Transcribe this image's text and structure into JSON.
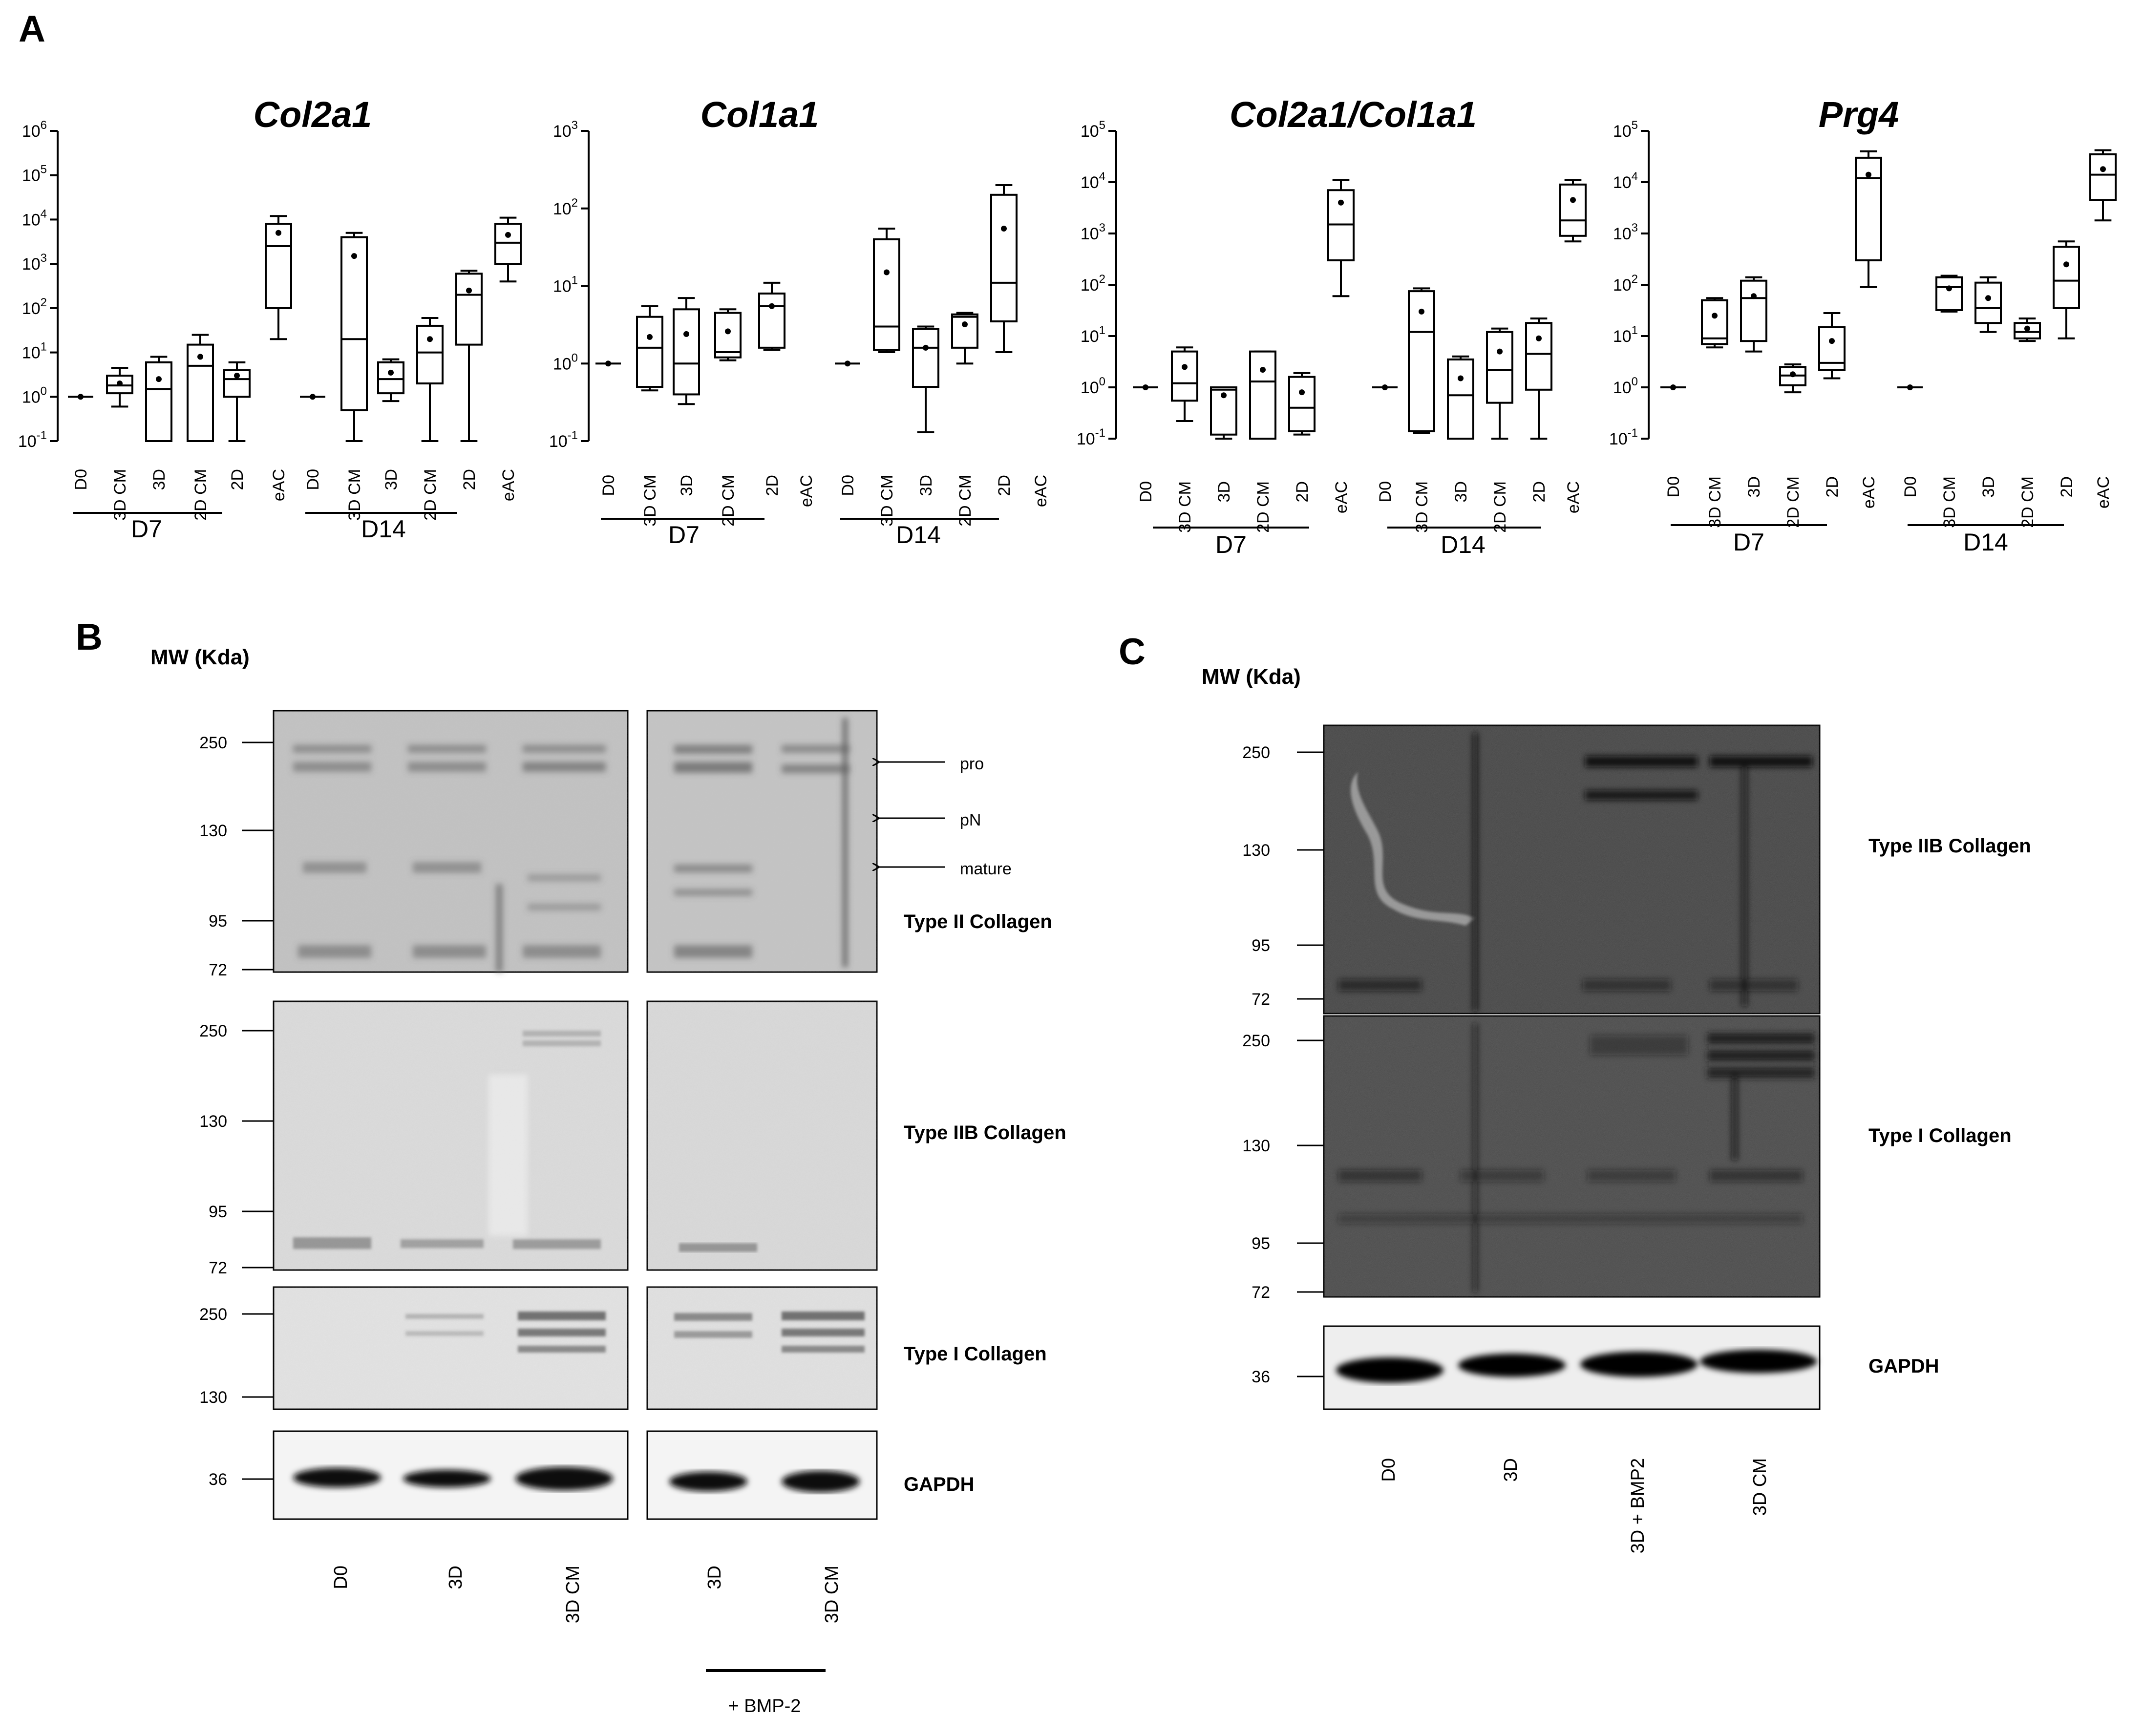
{
  "panels": {
    "A": "A",
    "B": "B",
    "C": "C"
  },
  "chart_data": [
    {
      "type": "box",
      "title": "Col2a1",
      "yscale": "log",
      "ylim": [
        0.1,
        1000000
      ],
      "yticks": [
        "10^-1",
        "10^0",
        "10^1",
        "10^2",
        "10^3",
        "10^4",
        "10^5",
        "10^6"
      ],
      "categories": [
        "D0",
        "3D CM",
        "3D",
        "2D CM",
        "2D",
        "eAC",
        "D0",
        "3D CM",
        "3D",
        "2D CM",
        "2D",
        "eAC"
      ],
      "groups": [
        "D7",
        "D14"
      ],
      "boxes": [
        {
          "min": 1,
          "q1": 1,
          "median": 1,
          "q3": 1,
          "max": 1,
          "mean": 1
        },
        {
          "min": 0.6,
          "q1": 1.2,
          "median": 1.8,
          "q3": 3,
          "max": 4.5,
          "mean": 2
        },
        {
          "min": 0.1,
          "q1": 0.1,
          "median": 1.5,
          "q3": 6,
          "max": 8,
          "mean": 2.5
        },
        {
          "min": 0.1,
          "q1": 0.1,
          "median": 5,
          "q3": 15,
          "max": 25,
          "mean": 8
        },
        {
          "min": 0.1,
          "q1": 1,
          "median": 2.5,
          "q3": 4,
          "max": 6,
          "mean": 3
        },
        {
          "min": 20,
          "q1": 100,
          "median": 2500,
          "q3": 8000,
          "max": 12000,
          "mean": 5000
        },
        {
          "min": 1,
          "q1": 1,
          "median": 1,
          "q3": 1,
          "max": 1,
          "mean": 1
        },
        {
          "min": 0.1,
          "q1": 0.5,
          "median": 20,
          "q3": 4000,
          "max": 5000,
          "mean": 1500
        },
        {
          "min": 0.8,
          "q1": 1.2,
          "median": 2.5,
          "q3": 6,
          "max": 7,
          "mean": 3.5
        },
        {
          "min": 0.1,
          "q1": 2,
          "median": 10,
          "q3": 40,
          "max": 60,
          "mean": 20
        },
        {
          "min": 0.1,
          "q1": 15,
          "median": 200,
          "q3": 600,
          "max": 700,
          "mean": 250
        },
        {
          "min": 400,
          "q1": 1000,
          "median": 3000,
          "q3": 8000,
          "max": 11000,
          "mean": 4500
        }
      ]
    },
    {
      "type": "box",
      "title": "Col1a1",
      "yscale": "log",
      "ylim": [
        0.1,
        1000
      ],
      "yticks": [
        "10^-1",
        "10^0",
        "10^1",
        "10^2",
        "10^3"
      ],
      "categories": [
        "D0",
        "3D CM",
        "3D",
        "2D CM",
        "2D",
        "eAC",
        "D0",
        "3D CM",
        "3D",
        "2D CM",
        "2D",
        "eAC"
      ],
      "groups": [
        "D7",
        "D14"
      ],
      "boxes": [
        {
          "min": 1,
          "q1": 1,
          "median": 1,
          "q3": 1,
          "max": 1,
          "mean": 1
        },
        {
          "min": 0.45,
          "q1": 0.5,
          "median": 1.6,
          "q3": 4,
          "max": 5.5,
          "mean": 2.2
        },
        {
          "min": 0.3,
          "q1": 0.4,
          "median": 1,
          "q3": 5,
          "max": 7,
          "mean": 2.4
        },
        {
          "min": 1.1,
          "q1": 1.2,
          "median": 1.4,
          "q3": 4.5,
          "max": 5,
          "mean": 2.6
        },
        {
          "min": 1.5,
          "q1": 1.6,
          "median": 5.5,
          "q3": 8,
          "max": 11,
          "mean": 5.5
        },
        null,
        {
          "min": 1,
          "q1": 1,
          "median": 1,
          "q3": 1,
          "max": 1,
          "mean": 1
        },
        {
          "min": 1.4,
          "q1": 1.5,
          "median": 3,
          "q3": 40,
          "max": 55,
          "mean": 15
        },
        {
          "min": 0.13,
          "q1": 0.5,
          "median": 1.6,
          "q3": 2.8,
          "max": 3,
          "mean": 1.6
        },
        {
          "min": 1,
          "q1": 1.6,
          "median": 4,
          "q3": 4.3,
          "max": 4.5,
          "mean": 3.2
        },
        {
          "min": 1.4,
          "q1": 3.5,
          "median": 11,
          "q3": 150,
          "max": 200,
          "mean": 55
        },
        null
      ]
    },
    {
      "type": "box",
      "title": "Col2a1/Col1a1",
      "yscale": "log",
      "ylim": [
        0.1,
        100000
      ],
      "yticks": [
        "10^-1",
        "10^0",
        "10^1",
        "10^2",
        "10^3",
        "10^4",
        "10^5"
      ],
      "categories": [
        "D0",
        "3D CM",
        "3D",
        "2D CM",
        "2D",
        "eAC",
        "D0",
        "3D CM",
        "3D",
        "2D CM",
        "2D",
        "eAC"
      ],
      "groups": [
        "D7",
        "D14"
      ],
      "boxes": [
        {
          "min": 1,
          "q1": 1,
          "median": 1,
          "q3": 1,
          "max": 1,
          "mean": 1
        },
        {
          "min": 0.22,
          "q1": 0.55,
          "median": 1.2,
          "q3": 5,
          "max": 6,
          "mean": 2.5
        },
        {
          "min": 0.1,
          "q1": 0.12,
          "median": 0.9,
          "q3": 1,
          "max": 1,
          "mean": 0.7
        },
        {
          "min": 0.1,
          "q1": 0.1,
          "median": 1.3,
          "q3": 5,
          "max": 5,
          "mean": 2.2
        },
        {
          "min": 0.12,
          "q1": 0.14,
          "median": 0.4,
          "q3": 1.6,
          "max": 1.9,
          "mean": 0.8
        },
        {
          "min": 60,
          "q1": 300,
          "median": 1500,
          "q3": 7000,
          "max": 11000,
          "mean": 4000
        },
        {
          "min": 1,
          "q1": 1,
          "median": 1,
          "q3": 1,
          "max": 1,
          "mean": 1
        },
        {
          "min": 0.13,
          "q1": 0.14,
          "median": 12,
          "q3": 75,
          "max": 85,
          "mean": 30
        },
        {
          "min": 0.1,
          "q1": 0.1,
          "median": 0.7,
          "q3": 3.5,
          "max": 4,
          "mean": 1.5
        },
        {
          "min": 0.1,
          "q1": 0.5,
          "median": 2.2,
          "q3": 12,
          "max": 14,
          "mean": 5
        },
        {
          "min": 0.1,
          "q1": 0.9,
          "median": 4.5,
          "q3": 18,
          "max": 22,
          "mean": 9
        },
        {
          "min": 700,
          "q1": 900,
          "median": 1800,
          "q3": 9000,
          "max": 11000,
          "mean": 4500
        }
      ]
    },
    {
      "type": "box",
      "title": "Prg4",
      "yscale": "log",
      "ylim": [
        0.1,
        100000
      ],
      "yticks": [
        "10^-1",
        "10^0",
        "10^1",
        "10^2",
        "10^3",
        "10^4",
        "10^5"
      ],
      "categories": [
        "D0",
        "3D CM",
        "3D",
        "2D CM",
        "2D",
        "eAC",
        "D0",
        "3D CM",
        "3D",
        "2D CM",
        "2D",
        "eAC"
      ],
      "groups": [
        "D7",
        "D14"
      ],
      "boxes": [
        {
          "min": 1,
          "q1": 1,
          "median": 1,
          "q3": 1,
          "max": 1,
          "mean": 1
        },
        {
          "min": 6,
          "q1": 7,
          "median": 9,
          "q3": 50,
          "max": 55,
          "mean": 25
        },
        {
          "min": 5,
          "q1": 8,
          "median": 55,
          "q3": 120,
          "max": 140,
          "mean": 60
        },
        {
          "min": 0.8,
          "q1": 1.1,
          "median": 1.7,
          "q3": 2.5,
          "max": 2.8,
          "mean": 1.8
        },
        {
          "min": 1.5,
          "q1": 2.2,
          "median": 3,
          "q3": 15,
          "max": 28,
          "mean": 8
        },
        {
          "min": 90,
          "q1": 300,
          "median": 12000,
          "q3": 30000,
          "max": 40000,
          "mean": 14000
        },
        {
          "min": 1,
          "q1": 1,
          "median": 1,
          "q3": 1,
          "max": 1,
          "mean": 1
        },
        {
          "min": 30,
          "q1": 32,
          "median": 90,
          "q3": 140,
          "max": 150,
          "mean": 85
        },
        {
          "min": 12,
          "q1": 18,
          "median": 35,
          "q3": 110,
          "max": 140,
          "mean": 55
        },
        {
          "min": 8,
          "q1": 9,
          "median": 12,
          "q3": 18,
          "max": 22,
          "mean": 14
        },
        {
          "min": 9,
          "q1": 35,
          "median": 120,
          "q3": 550,
          "max": 700,
          "mean": 250
        },
        {
          "min": 1800,
          "q1": 4500,
          "median": 14000,
          "q3": 35000,
          "max": 42000,
          "mean": 18000
        }
      ]
    }
  ],
  "blot_B": {
    "mw_header": "MW (Kda)",
    "markers_type2": [
      "250",
      "130",
      "95",
      "72"
    ],
    "markers_type2b": [
      "250",
      "130",
      "95",
      "72"
    ],
    "markers_type1": [
      "250",
      "130"
    ],
    "marker_gapdh": "36",
    "arrows": [
      "pro",
      "pN",
      "mature"
    ],
    "labels": [
      "Type II Collagen",
      "Type IIB Collagen",
      "Type I Collagen",
      "GAPDH"
    ],
    "lanes_left": [
      "D0",
      "3D",
      "3D CM"
    ],
    "lanes_right": [
      "3D",
      "3D CM"
    ],
    "treatment": "+ BMP-2"
  },
  "blot_C": {
    "mw_header": "MW (Kda)",
    "markers_top": [
      "250",
      "130",
      "95",
      "72"
    ],
    "markers_mid": [
      "250",
      "130",
      "95",
      "72"
    ],
    "marker_gapdh": "36",
    "labels": [
      "Type IIB Collagen",
      "Type I Collagen",
      "GAPDH"
    ],
    "lanes": [
      "D0",
      "3D",
      "3D + BMP2",
      "3D CM"
    ]
  }
}
